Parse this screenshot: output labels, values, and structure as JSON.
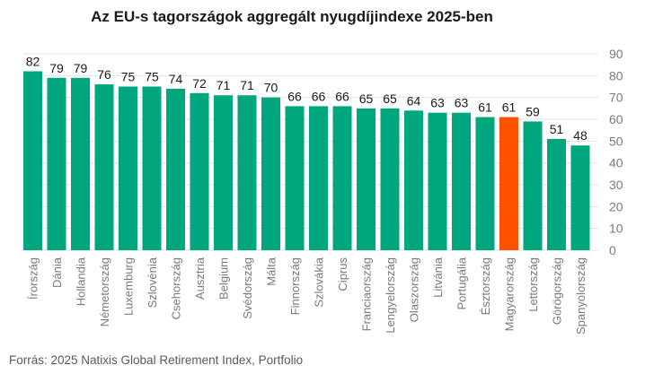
{
  "chart_data": {
    "type": "bar",
    "title": "Az EU-s tagországok aggregált nyugdíjindexe 2025-ben",
    "categories": [
      "Írország",
      "Dánia",
      "Hollandia",
      "Németország",
      "Luxemburg",
      "Szlovénia",
      "Csehország",
      "Ausztria",
      "Belgium",
      "Svédország",
      "Málta",
      "Finnország",
      "Szlovákia",
      "Ciprus",
      "Franciaország",
      "Lengyelország",
      "Olaszország",
      "Litvánia",
      "Portugália",
      "Észtország",
      "Magyarország",
      "Lettország",
      "Görögország",
      "Spanyolország"
    ],
    "values": [
      82,
      79,
      79,
      76,
      75,
      75,
      74,
      72,
      71,
      71,
      70,
      66,
      66,
      66,
      65,
      65,
      64,
      63,
      63,
      61,
      61,
      59,
      51,
      48
    ],
    "ylim": [
      0,
      90
    ],
    "yticks": [
      0,
      10,
      20,
      30,
      40,
      50,
      60,
      70,
      80,
      90
    ],
    "y_axis_side": "right",
    "grid": true,
    "bar_color": "#00a67e",
    "highlight_color": "#ff5000",
    "highlight_category": "Magyarország"
  },
  "source": "Forrás: 2025 Natixis Global Retirement Index, Portfolio"
}
